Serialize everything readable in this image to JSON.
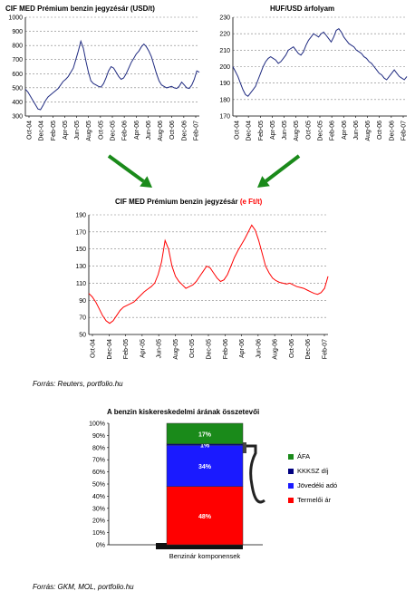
{
  "chart_data": [
    {
      "type": "line",
      "title": "CIF MED Prémium benzin jegyzésár (USD/t)",
      "ylim": [
        300,
        1000
      ],
      "yticks": [
        "300",
        "400",
        "500",
        "600",
        "700",
        "800",
        "900",
        "1000"
      ],
      "xticks": [
        "Oct-04",
        "Dec-04",
        "Feb-05",
        "Apr-05",
        "Jun-05",
        "Aug-05",
        "Oct-05",
        "Dec-05",
        "Feb-06",
        "Apr-06",
        "Jun-06",
        "Aug-06",
        "Oct-06",
        "Dec-06",
        "Feb-07"
      ],
      "grid": "horizontal dashed",
      "series": [
        {
          "color": "#1f2a80",
          "values": [
            490,
            470,
            440,
            410,
            380,
            350,
            345,
            375,
            410,
            435,
            450,
            465,
            480,
            495,
            520,
            545,
            560,
            580,
            610,
            640,
            700,
            760,
            830,
            780,
            690,
            610,
            550,
            530,
            520,
            510,
            505,
            530,
            570,
            620,
            650,
            640,
            610,
            580,
            560,
            570,
            600,
            640,
            680,
            710,
            740,
            760,
            790,
            810,
            790,
            760,
            720,
            660,
            600,
            550,
            520,
            510,
            500,
            505,
            510,
            500,
            495,
            510,
            540,
            520,
            500,
            495,
            520,
            560,
            620,
            610
          ]
        }
      ]
    },
    {
      "type": "line",
      "title": "HUF/USD árfolyam",
      "ylim": [
        170,
        230
      ],
      "yticks": [
        "170",
        "180",
        "190",
        "200",
        "210",
        "220",
        "230"
      ],
      "xticks": [
        "Oct-04",
        "Dec-04",
        "Feb-05",
        "Apr-05",
        "Jun-05",
        "Aug-05",
        "Oct-05",
        "Dec-05",
        "Feb-06",
        "Apr-06",
        "Jun-06",
        "Aug-06",
        "Oct-06",
        "Dec-06",
        "Feb-07"
      ],
      "grid": "horizontal dashed",
      "series": [
        {
          "color": "#1f2a80",
          "values": [
            200,
            197,
            194,
            190,
            186,
            183,
            182,
            184,
            186,
            188,
            192,
            196,
            200,
            203,
            205,
            206,
            205,
            204,
            202,
            203,
            205,
            207,
            210,
            211,
            212,
            210,
            208,
            207,
            209,
            213,
            216,
            218,
            220,
            219,
            218,
            220,
            221,
            219,
            217,
            215,
            218,
            222,
            223,
            221,
            218,
            216,
            214,
            213,
            212,
            210,
            209,
            208,
            206,
            205,
            203,
            202,
            200,
            198,
            196,
            195,
            193,
            192,
            194,
            196,
            198,
            196,
            194,
            193,
            192,
            194
          ]
        }
      ]
    },
    {
      "type": "line",
      "title": "CIF MED Prémium benzin jegyzésár",
      "title_suffix": "(e Ft/t)",
      "ylim": [
        50,
        190
      ],
      "yticks": [
        "50",
        "70",
        "90",
        "110",
        "130",
        "150",
        "170",
        "190"
      ],
      "xticks": [
        "Oct-04",
        "Dec-04",
        "Feb-05",
        "Apr-05",
        "Jun-05",
        "Aug-05",
        "Oct-05",
        "Dec-05",
        "Feb-06",
        "Apr-06",
        "Jun-06",
        "Aug-06",
        "Oct-06",
        "Dec-06",
        "Feb-07"
      ],
      "grid": "horizontal dashed",
      "series": [
        {
          "color": "#ff0000",
          "values": [
            98,
            94,
            88,
            80,
            72,
            66,
            63,
            66,
            72,
            78,
            82,
            84,
            86,
            88,
            92,
            96,
            100,
            103,
            106,
            110,
            120,
            135,
            160,
            150,
            130,
            118,
            112,
            108,
            104,
            106,
            108,
            112,
            118,
            124,
            130,
            128,
            122,
            116,
            112,
            114,
            120,
            130,
            140,
            148,
            155,
            162,
            170,
            178,
            172,
            160,
            145,
            130,
            122,
            116,
            113,
            111,
            110,
            109,
            110,
            108,
            106,
            105,
            104,
            102,
            100,
            98,
            97,
            99,
            104,
            118
          ]
        }
      ]
    },
    {
      "type": "bar",
      "stacked": true,
      "title": "A benzin kiskereskedelmi árának összetevői",
      "categories": [
        "Benzinár komponensek"
      ],
      "ylim": [
        0,
        100
      ],
      "yticks": [
        "0%",
        "10%",
        "20%",
        "30%",
        "40%",
        "50%",
        "60%",
        "70%",
        "80%",
        "90%",
        "100%"
      ],
      "series": [
        {
          "name": "Termelői ár",
          "value": 48,
          "label": "48%",
          "color": "#ff0000"
        },
        {
          "name": "Jövedéki adó",
          "value": 34,
          "label": "34%",
          "color": "#1a1aff"
        },
        {
          "name": "KKKSZ díj",
          "value": 1,
          "label": "1%",
          "color": "#000080"
        },
        {
          "name": "ÁFA",
          "value": 17,
          "label": "17%",
          "color": "#1a8a1a"
        }
      ],
      "legend_order": [
        "ÁFA",
        "KKKSZ díj",
        "Jövedéki adó",
        "Termelői ár"
      ]
    }
  ],
  "sources": {
    "first": "Forrás: Reuters, portfolio.hu",
    "second": "Forrás: GKM, MOL, portfolio.hu"
  },
  "colors": {
    "arrow": "#1a8a1a",
    "axis": "#000000",
    "grid": "#808080"
  }
}
